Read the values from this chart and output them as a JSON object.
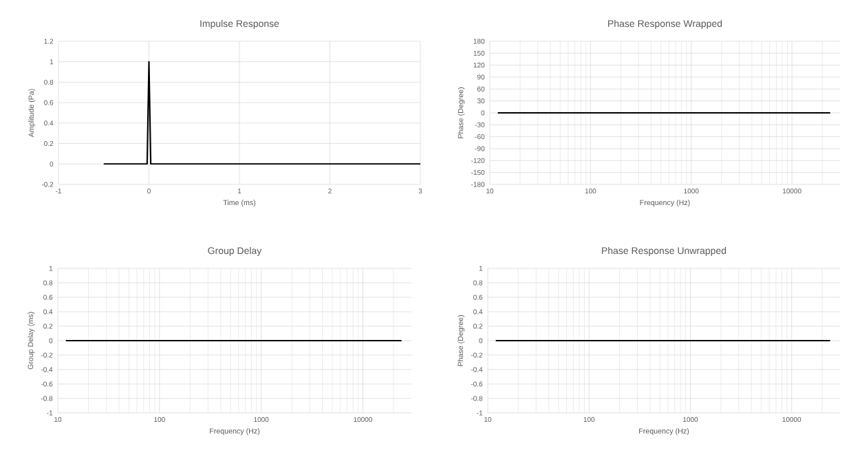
{
  "chart_data": [
    {
      "type": "line",
      "title": "Impulse Response",
      "xlabel": "Time (ms)",
      "ylabel": "Amplitude (Pa)",
      "color": "#000000",
      "x": [
        -0.5,
        -0.02,
        0,
        0.02,
        3
      ],
      "values": [
        0,
        0,
        1,
        0,
        0
      ],
      "xlim": [
        -1,
        3
      ],
      "ylim": [
        -0.2,
        1.2
      ],
      "xticks": [
        -1,
        0,
        1,
        2,
        3
      ],
      "yticks": [
        -0.2,
        0,
        0.2,
        0.4,
        0.6,
        0.8,
        1,
        1.2
      ],
      "grid": true
    },
    {
      "type": "line",
      "title": "Phase Response Wrapped",
      "xlabel": "Frequency (Hz)",
      "ylabel": "Phase (Degree)",
      "color": "#000000",
      "x": [
        12,
        24000
      ],
      "values": [
        0,
        0
      ],
      "log": "x",
      "xlim": [
        10,
        30000
      ],
      "ylim": [
        -180,
        180
      ],
      "xticks": [
        10,
        100,
        1000,
        10000
      ],
      "yticks": [
        -180,
        -150,
        -120,
        -90,
        -60,
        -30,
        0,
        30,
        60,
        90,
        120,
        150,
        180
      ],
      "grid": true
    },
    {
      "type": "line",
      "title": "Group Delay",
      "xlabel": "Frequency (Hz)",
      "ylabel": "Group Delay (ms)",
      "color": "#000000",
      "x": [
        12,
        24000
      ],
      "values": [
        0,
        0
      ],
      "log": "x",
      "xlim": [
        10,
        30000
      ],
      "ylim": [
        -1,
        1
      ],
      "xticks": [
        10,
        100,
        1000,
        10000
      ],
      "yticks": [
        -1,
        -0.8,
        -0.6,
        -0.4,
        -0.2,
        0,
        0.2,
        0.4,
        0.6,
        0.8,
        1
      ],
      "grid": true
    },
    {
      "type": "line",
      "title": "Phase Response Unwrapped",
      "xlabel": "Frequency (Hz)",
      "ylabel": "Phase (Degree)",
      "color": "#000000",
      "x": [
        12,
        24000
      ],
      "values": [
        0,
        0
      ],
      "log": "x",
      "xlim": [
        10,
        30000
      ],
      "ylim": [
        -1,
        1
      ],
      "xticks": [
        10,
        100,
        1000,
        10000
      ],
      "yticks": [
        -1,
        -0.8,
        -0.6,
        -0.4,
        -0.2,
        0,
        0.2,
        0.4,
        0.6,
        0.8,
        1
      ],
      "grid": true
    }
  ]
}
